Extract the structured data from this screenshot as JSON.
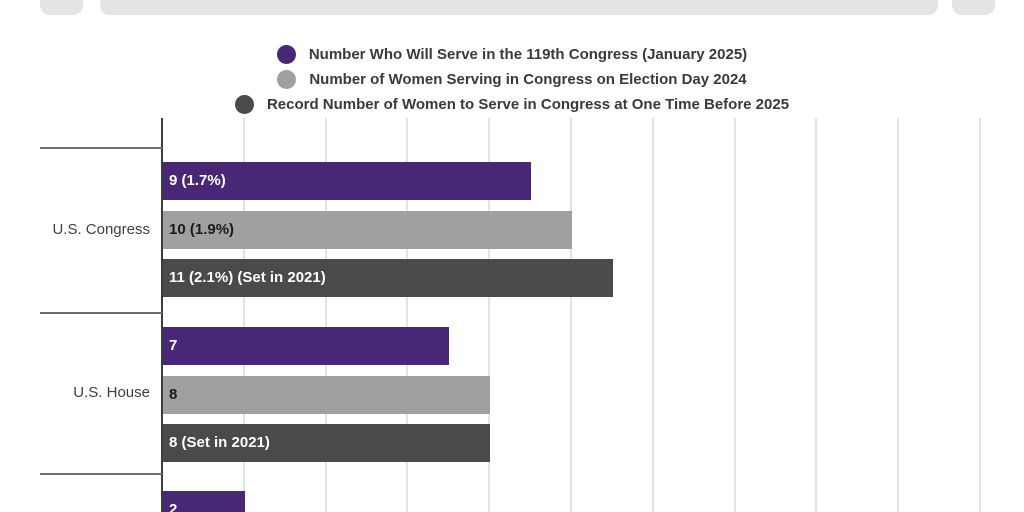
{
  "header": {
    "skeleton_color": "#e4e4e4"
  },
  "legend": {
    "text_color": "#3a3a3a"
  },
  "chart_data": {
    "type": "bar",
    "orientation": "horizontal",
    "legend_position": "top",
    "grid": true,
    "xlim": [
      0,
      21
    ],
    "gridline_values": [
      2,
      4,
      6,
      8,
      10,
      12,
      14,
      16,
      18,
      20
    ],
    "categories": [
      "U.S. Congress",
      "U.S. House",
      ""
    ],
    "series": [
      {
        "name": "Number Who Will Serve in the 119th Congress (January 2025)",
        "color": "#482776",
        "label_text_color": "#ffffff",
        "values": [
          9,
          7,
          2
        ],
        "bar_labels": [
          "9 (1.7%)",
          "7",
          "2"
        ]
      },
      {
        "name": "Number of Women Serving in Congress on Election Day 2024",
        "color": "#a0a0a0",
        "label_text_color": "#1a1a1a",
        "values": [
          10,
          8,
          null
        ],
        "bar_labels": [
          "10 (1.9%)",
          "8",
          null
        ]
      },
      {
        "name": "Record Number of Women to Serve in Congress at One Time Before 2025",
        "color": "#4a4a4a",
        "label_text_color": "#ffffff",
        "values": [
          11,
          8,
          null
        ],
        "bar_labels": [
          "11 (2.1%) (Set in 2021)",
          "8 (Set in 2021)",
          null
        ]
      }
    ],
    "axis_color": "#3d3d3d",
    "gridline_color": "#e3e3e3",
    "separator_color": "#6e6e6e",
    "category_text_color": "#404040"
  }
}
